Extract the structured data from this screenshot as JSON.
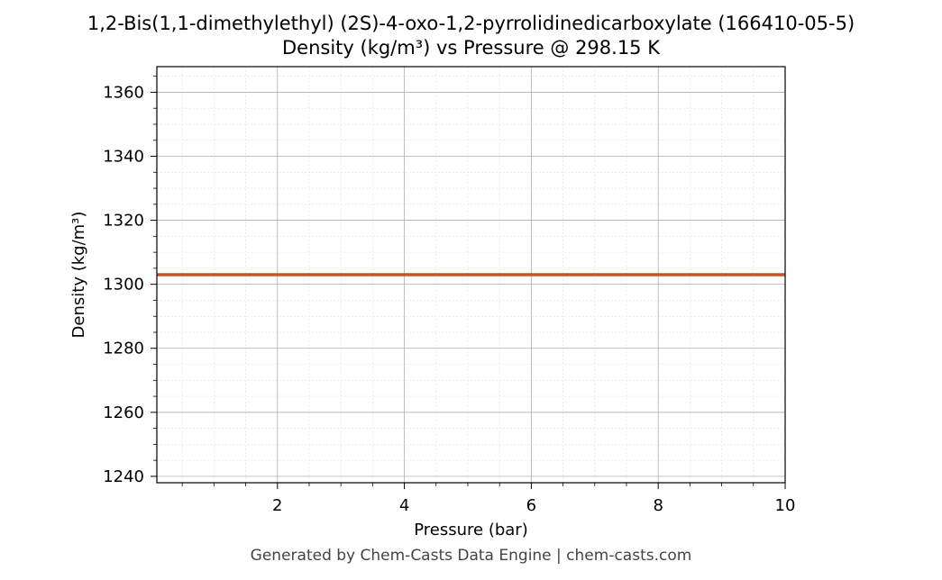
{
  "chart_data": {
    "type": "line",
    "title": "1,2-Bis(1,1-dimethylethyl) (2S)-4-oxo-1,2-pyrrolidinedicarboxylate (166410-05-5)",
    "subtitle": "Density (kg/m³) vs Pressure @ 298.15 K",
    "xlabel": "Pressure (bar)",
    "ylabel": "Density (kg/m³)",
    "xlim": [
      0.1,
      10
    ],
    "ylim": [
      1238,
      1368
    ],
    "x_ticks": [
      2,
      4,
      6,
      8,
      10
    ],
    "y_ticks": [
      1240,
      1260,
      1280,
      1300,
      1320,
      1340,
      1360
    ],
    "grid": true,
    "series": [
      {
        "x": [
          0.1,
          10
        ],
        "y": [
          1303,
          1303
        ],
        "color": "#c8532a"
      }
    ]
  },
  "footer": "Generated by Chem-Casts Data Engine | chem-casts.com"
}
